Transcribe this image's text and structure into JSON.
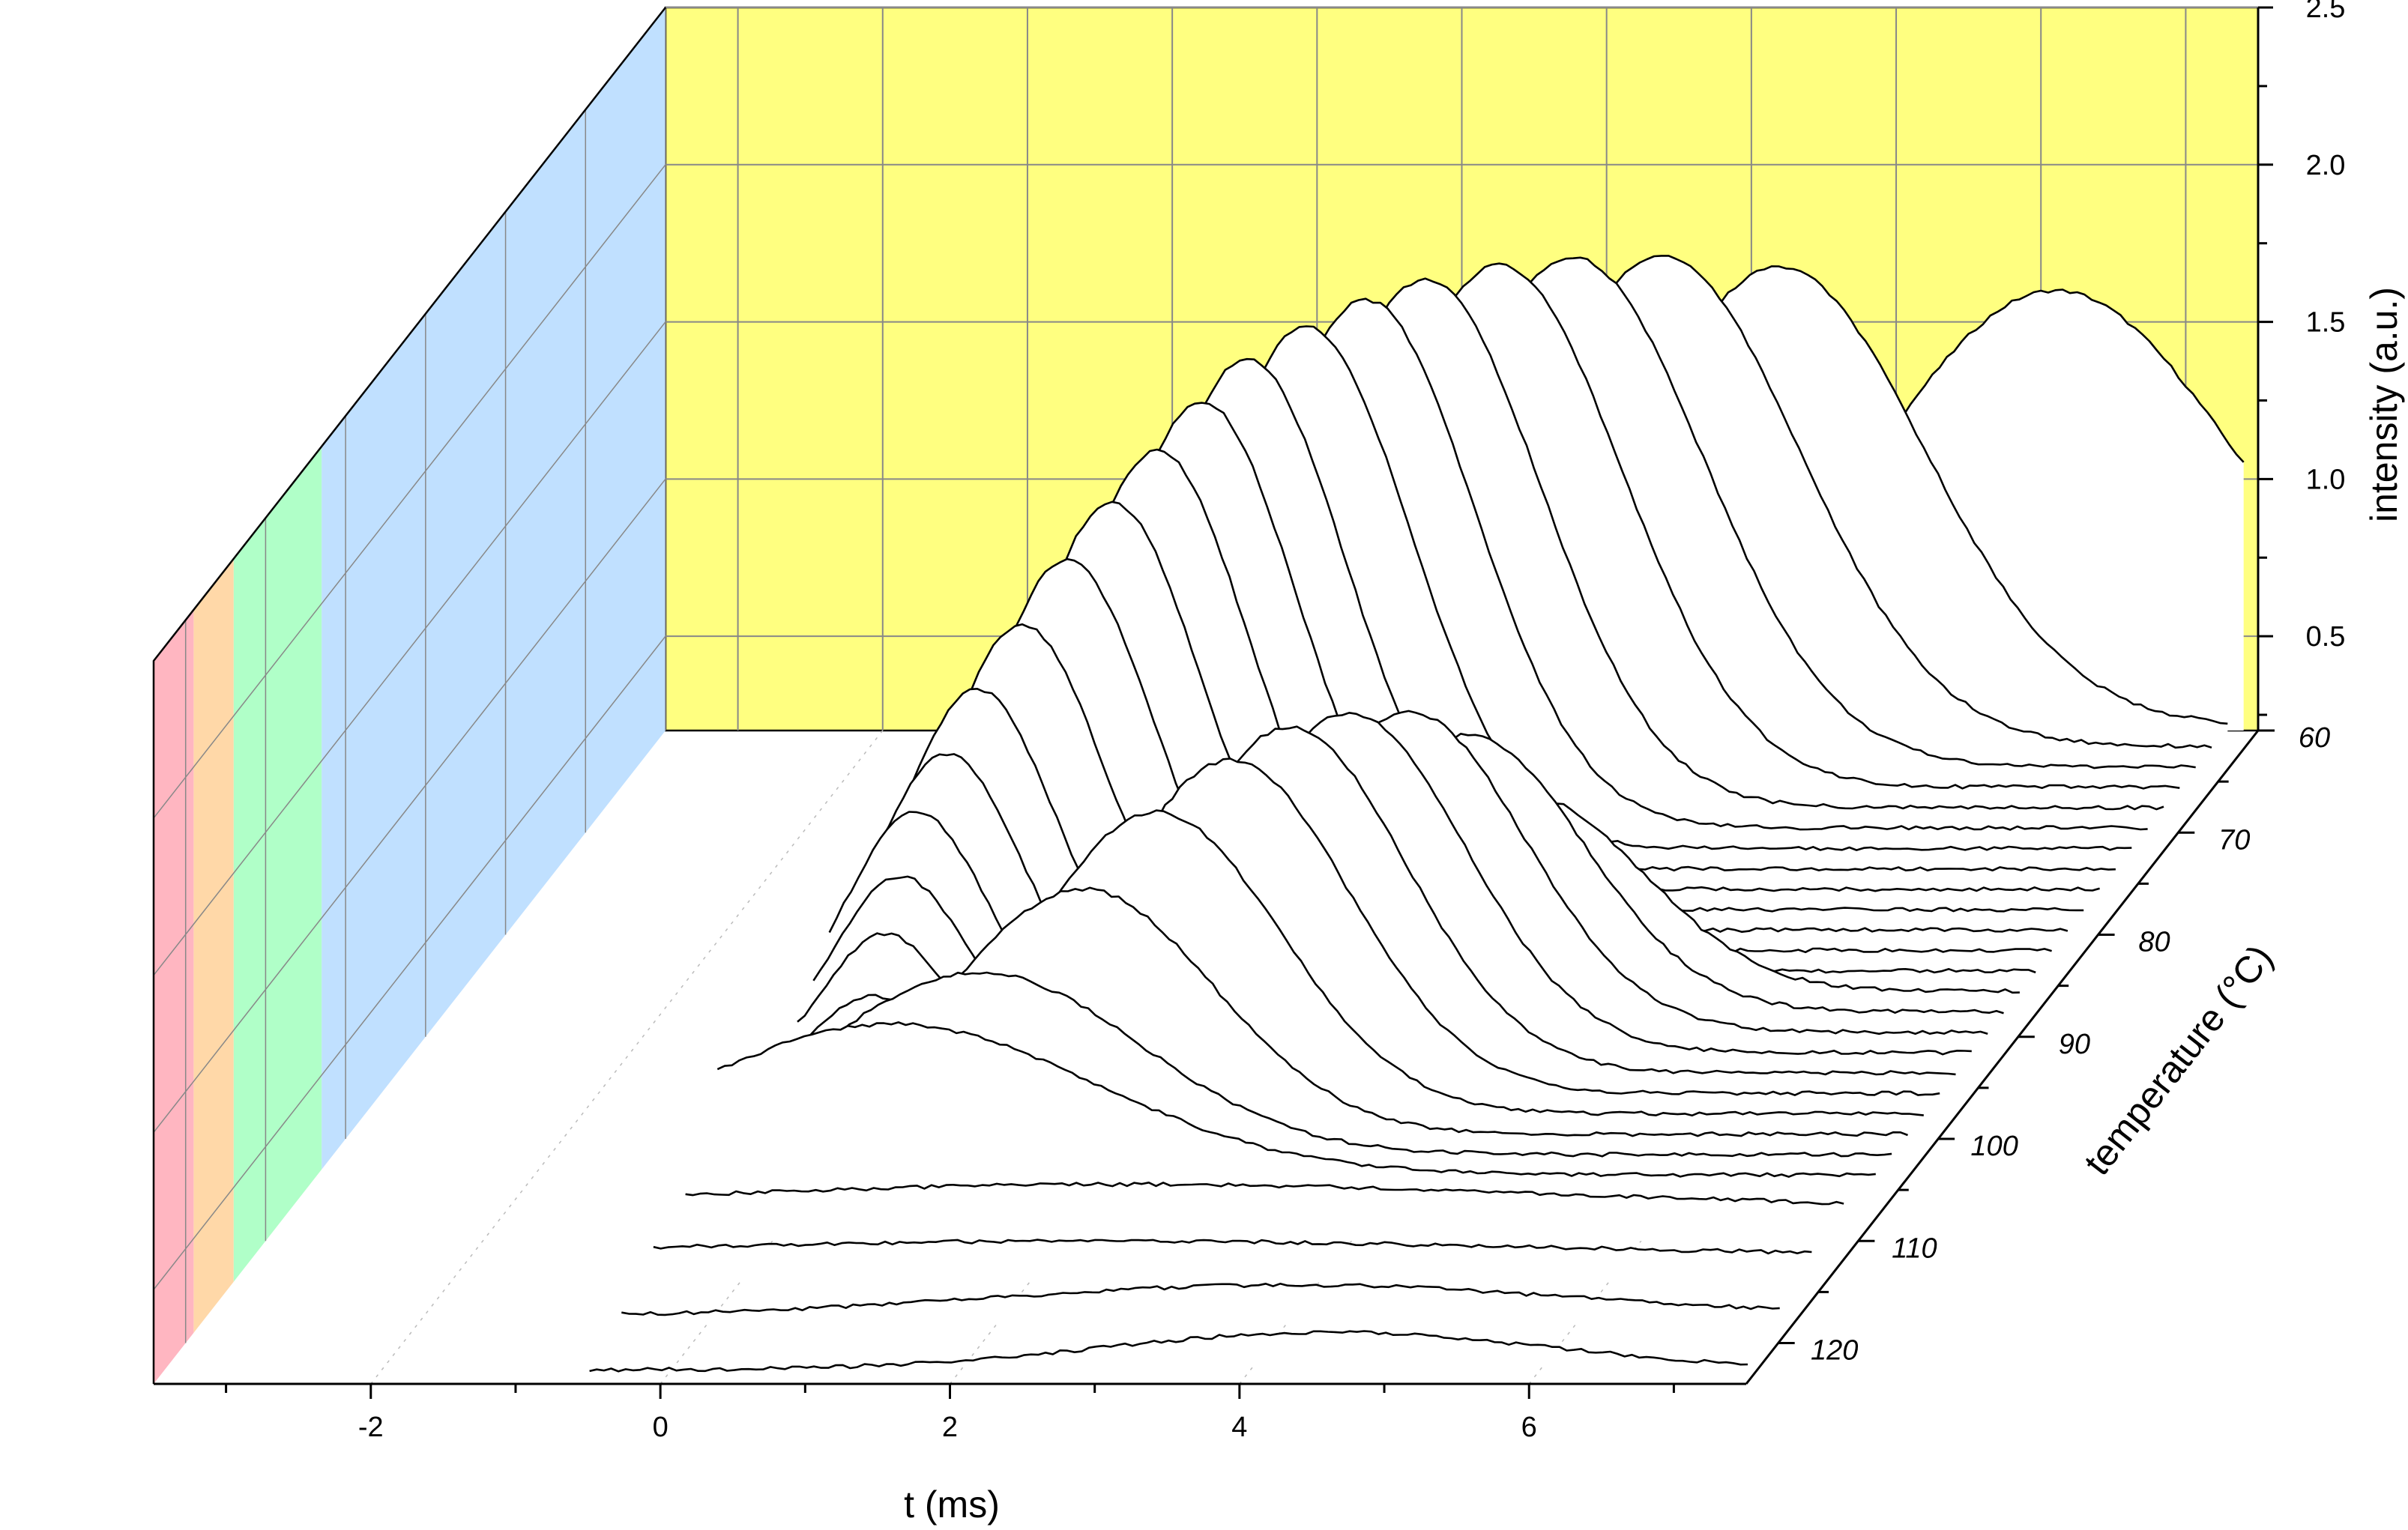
{
  "chart_data": {
    "type": "waterfall-3d",
    "title": "",
    "xlabel": "t (ms)",
    "ylabel": "temperature (°C)",
    "zlabel": "intensity (a.u.)",
    "x_ticks": [
      "-2",
      "0",
      "2",
      "4",
      "6"
    ],
    "z_ticks": [
      "0.5",
      "1.0",
      "1.5",
      "2.0",
      "2.5"
    ],
    "temp_ticks": [
      "60",
      "70",
      "80",
      "90",
      "100",
      "110",
      "120"
    ],
    "xlim": [
      -3.5,
      7.5
    ],
    "zlim": [
      0.2,
      2.5
    ],
    "temp_range": [
      60,
      124
    ],
    "colors": {
      "back_wall": "#ffff80",
      "side_band_blue": "#c0e0ff",
      "side_band_green": "#b0ffc8",
      "side_band_orange": "#ffd8a8",
      "side_band_red": "#ffb6c1",
      "trace_fill": "#ffffff",
      "trace_line": "#000000",
      "grid": "#888888"
    },
    "side_bands": [
      {
        "name": "blue",
        "from_temp": 60,
        "to_temp": 103
      },
      {
        "name": "green",
        "from_temp": 103,
        "to_temp": 114
      },
      {
        "name": "orange",
        "from_temp": 114,
        "to_temp": 119
      },
      {
        "name": "red",
        "from_temp": 119,
        "to_temp": 124
      }
    ],
    "series": [
      {
        "temp": 60,
        "baseline": 0.28,
        "peak1": {
          "t": 6.1,
          "amp": 1.32,
          "w": 1.25
        },
        "peak2": null
      },
      {
        "temp": 62,
        "baseline": 0.28,
        "peak1": {
          "t": 4.3,
          "amp": 1.46,
          "w": 1.0
        },
        "peak2": null
      },
      {
        "temp": 64,
        "baseline": 0.28,
        "peak1": {
          "t": 3.6,
          "amp": 1.56,
          "w": 0.95
        },
        "peak2": null
      },
      {
        "temp": 66,
        "baseline": 0.28,
        "peak1": {
          "t": 3.1,
          "amp": 1.62,
          "w": 0.9
        },
        "peak2": null
      },
      {
        "temp": 68,
        "baseline": 0.28,
        "peak1": {
          "t": 2.7,
          "amp": 1.66,
          "w": 0.85
        },
        "peak2": null
      },
      {
        "temp": 70,
        "baseline": 0.28,
        "peak1": {
          "t": 2.3,
          "amp": 1.68,
          "w": 0.8
        },
        "peak2": null
      },
      {
        "temp": 72,
        "baseline": 0.28,
        "peak1": {
          "t": 2.0,
          "amp": 1.68,
          "w": 0.75
        },
        "peak2": null
      },
      {
        "temp": 74,
        "baseline": 0.28,
        "peak1": {
          "t": 1.7,
          "amp": 1.66,
          "w": 0.72
        },
        "peak2": null
      },
      {
        "temp": 76,
        "baseline": 0.28,
        "peak1": {
          "t": 1.4,
          "amp": 1.62,
          "w": 0.68
        },
        "peak2": null
      },
      {
        "temp": 78,
        "baseline": 0.28,
        "peak1": {
          "t": 1.2,
          "amp": 1.55,
          "w": 0.65
        },
        "peak2": null
      },
      {
        "temp": 80,
        "baseline": 0.28,
        "peak1": {
          "t": 1.0,
          "amp": 1.46,
          "w": 0.62
        },
        "peak2": null
      },
      {
        "temp": 82,
        "baseline": 0.28,
        "peak1": {
          "t": 0.8,
          "amp": 1.36,
          "w": 0.6
        },
        "peak2": null
      },
      {
        "temp": 84,
        "baseline": 0.28,
        "peak1": {
          "t": 0.6,
          "amp": 1.24,
          "w": 0.58
        },
        "peak2": null
      },
      {
        "temp": 86,
        "baseline": 0.28,
        "peak1": {
          "t": 0.4,
          "amp": 1.1,
          "w": 0.55
        },
        "peak2": null
      },
      {
        "temp": 88,
        "baseline": 0.28,
        "peak1": {
          "t": 0.2,
          "amp": 0.96,
          "w": 0.52
        },
        "peak2": {
          "t": 4.0,
          "amp": 0.62,
          "w": 0.8
        }
      },
      {
        "temp": 90,
        "baseline": 0.28,
        "peak1": {
          "t": 0.1,
          "amp": 0.82,
          "w": 0.5
        },
        "peak2": {
          "t": 3.7,
          "amp": 0.88,
          "w": 0.8
        }
      },
      {
        "temp": 92,
        "baseline": 0.28,
        "peak1": {
          "t": 0.0,
          "amp": 0.7,
          "w": 0.48
        },
        "peak2": {
          "t": 3.4,
          "amp": 1.02,
          "w": 0.8
        }
      },
      {
        "temp": 94,
        "baseline": 0.28,
        "peak1": {
          "t": 0.0,
          "amp": 0.56,
          "w": 0.45
        },
        "peak2": {
          "t": 3.1,
          "amp": 1.08,
          "w": 0.8
        }
      },
      {
        "temp": 96,
        "baseline": 0.28,
        "peak1": {
          "t": 0.0,
          "amp": 0.44,
          "w": 0.42
        },
        "peak2": {
          "t": 2.8,
          "amp": 1.1,
          "w": 0.8
        }
      },
      {
        "temp": 98,
        "baseline": 0.28,
        "peak1": {
          "t": 0.0,
          "amp": 0.3,
          "w": 0.4
        },
        "peak2": {
          "t": 2.5,
          "amp": 1.06,
          "w": 0.82
        }
      },
      {
        "temp": 100,
        "baseline": 0.28,
        "peak1": {
          "t": 0.0,
          "amp": 0.18,
          "w": 0.4
        },
        "peak2": {
          "t": 2.1,
          "amp": 0.96,
          "w": 0.85
        }
      },
      {
        "temp": 102,
        "baseline": 0.28,
        "peak1": null,
        "peak2": {
          "t": 1.7,
          "amp": 0.78,
          "w": 0.9
        }
      },
      {
        "temp": 104,
        "baseline": 0.28,
        "peak1": null,
        "peak2": {
          "t": 1.1,
          "amp": 0.58,
          "w": 1.1
        }
      },
      {
        "temp": 106,
        "baseline": 0.28,
        "peak1": null,
        "peak2": {
          "t": 0.6,
          "amp": 0.48,
          "w": 1.4
        }
      },
      {
        "temp": 110,
        "baseline": 0.3,
        "peak1": null,
        "peak2": {
          "t": 2.5,
          "amp": 0.08,
          "w": 3.0
        }
      },
      {
        "temp": 114,
        "baseline": 0.28,
        "peak1": null,
        "peak2": {
          "t": 2.5,
          "amp": 0.05,
          "w": 3.0
        }
      },
      {
        "temp": 118,
        "baseline": 0.22,
        "peak1": null,
        "peak2": {
          "t": 4.0,
          "amp": 0.1,
          "w": 2.0
        }
      },
      {
        "temp": 122,
        "baseline": 0.18,
        "peak1": null,
        "peak2": {
          "t": 4.5,
          "amp": 0.12,
          "w": 1.5
        }
      }
    ]
  }
}
